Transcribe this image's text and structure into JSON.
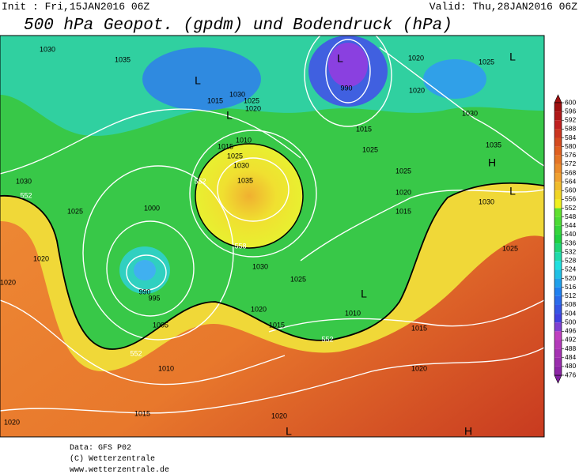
{
  "header": {
    "init": "Init : Fri,15JAN2016 06Z",
    "valid": "Valid: Thu,28JAN2016 06Z",
    "title": "500 hPa Geopot. (gpdm) und Bodendruck (hPa)"
  },
  "isobar_labels": [
    1030,
    1035,
    1015,
    1030,
    1025,
    1020,
    1010,
    1015,
    1025,
    1030,
    1035,
    990,
    1020,
    1025,
    1020,
    1030,
    1015,
    1025,
    1035,
    1025,
    1020,
    1015,
    1030,
    1030,
    1025,
    1000,
    1020,
    1020,
    990,
    995,
    1005,
    1030,
    1025,
    1020,
    1015,
    1010,
    1015,
    1010,
    1020,
    1015,
    1020,
    1020,
    1025
  ],
  "height_labels": [
    552,
    558,
    552,
    552,
    552
  ],
  "pressure_centers": [
    "L",
    "L",
    "L",
    "H",
    "L",
    "L",
    "L",
    "L",
    "H"
  ],
  "colorbar": [
    600,
    596,
    592,
    588,
    584,
    580,
    576,
    572,
    568,
    564,
    560,
    556,
    552,
    548,
    544,
    540,
    536,
    532,
    528,
    524,
    520,
    516,
    512,
    508,
    504,
    500,
    496,
    492,
    488,
    484,
    480,
    476
  ],
  "footer": [
    "Data: GFS P02",
    "(C) Wetterzentrale",
    "www.wetterzentrale.de"
  ]
}
